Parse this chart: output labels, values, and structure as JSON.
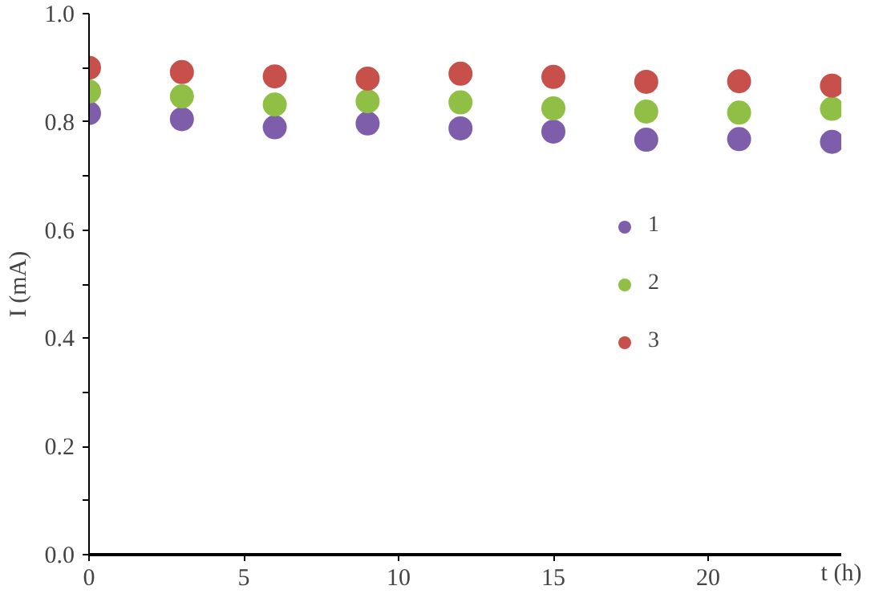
{
  "chart_data": {
    "type": "scatter",
    "xlabel": "t (h)",
    "ylabel": "I (mA)",
    "x": [
      0,
      3,
      6,
      9,
      12,
      15,
      18,
      21,
      24
    ],
    "series": [
      {
        "name": "1",
        "color": "#7e5eab",
        "values": [
          0.816,
          0.805,
          0.79,
          0.797,
          0.788,
          0.782,
          0.767,
          0.768,
          0.763
        ]
      },
      {
        "name": "2",
        "color": "#8fbf45",
        "values": [
          0.856,
          0.847,
          0.832,
          0.838,
          0.836,
          0.825,
          0.819,
          0.817,
          0.824
        ]
      },
      {
        "name": "3",
        "color": "#c8504a",
        "values": [
          0.9,
          0.892,
          0.884,
          0.88,
          0.889,
          0.883,
          0.874,
          0.875,
          0.867
        ]
      }
    ],
    "xlim": [
      0,
      24.3
    ],
    "ylim": [
      0,
      1.0
    ],
    "xticks": [
      0,
      5,
      10,
      15,
      20
    ],
    "yticks": [
      {
        "value": 0,
        "label": "0.0"
      },
      {
        "value": 0.1,
        "label": null
      },
      {
        "value": 0.2,
        "label": "0.2"
      },
      {
        "value": 0.3,
        "label": null
      },
      {
        "value": 0.4,
        "label": "0.4"
      },
      {
        "value": 0.5,
        "label": null
      },
      {
        "value": 0.6,
        "label": "0.6"
      },
      {
        "value": 0.7,
        "label": null
      },
      {
        "value": 0.8,
        "label": "0.8"
      },
      {
        "value": 0.9,
        "label": null
      },
      {
        "value": 1.0,
        "label": "1.0"
      }
    ],
    "marker": "circle",
    "grid": false,
    "legend": "right"
  }
}
